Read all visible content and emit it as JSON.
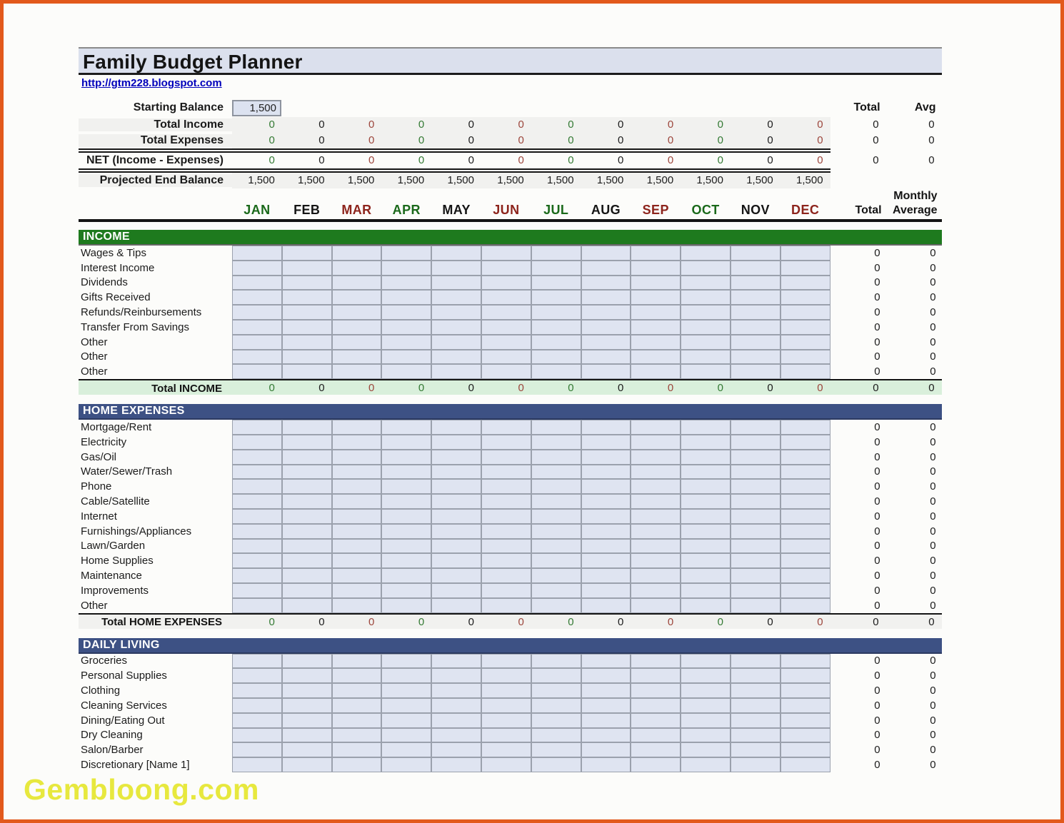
{
  "page": {
    "title": "Family Budget Planner",
    "link": "http://gtm228.blogspot.com",
    "watermark": "Gembloong.com"
  },
  "colors": {
    "frame": "#e2591c",
    "title_bg": "#dbe0ed",
    "income_header_bg": "#1e7a1e",
    "expenses_header_bg": "#3d5184",
    "cell_bg": "#dfe4f1",
    "total_income_row_bg": "#d9efdb",
    "total_expenses_row_bg": "#f1f1ef",
    "value_green": "#347a34",
    "value_red": "#9c463c",
    "value_black": "#1c1c1c"
  },
  "months": [
    {
      "label": "JAN",
      "color": "green"
    },
    {
      "label": "FEB",
      "color": "black"
    },
    {
      "label": "MAR",
      "color": "red"
    },
    {
      "label": "APR",
      "color": "green"
    },
    {
      "label": "MAY",
      "color": "black"
    },
    {
      "label": "JUN",
      "color": "red"
    },
    {
      "label": "JUL",
      "color": "green"
    },
    {
      "label": "AUG",
      "color": "black"
    },
    {
      "label": "SEP",
      "color": "red"
    },
    {
      "label": "OCT",
      "color": "green"
    },
    {
      "label": "NOV",
      "color": "black"
    },
    {
      "label": "DEC",
      "color": "red"
    }
  ],
  "summary": {
    "starting_balance_label": "Starting Balance",
    "starting_balance_value": "1,500",
    "total_header": "Total",
    "avg_header": "Avg",
    "monthly_label": "Monthly",
    "total_label": "Total",
    "average_label": "Average",
    "rows": [
      {
        "label": "Total Income",
        "values": [
          "0",
          "0",
          "0",
          "0",
          "0",
          "0",
          "0",
          "0",
          "0",
          "0",
          "0",
          "0"
        ],
        "total": "0",
        "avg": "0",
        "shaded": true,
        "black_values": false
      },
      {
        "label": "Total Expenses",
        "values": [
          "0",
          "0",
          "0",
          "0",
          "0",
          "0",
          "0",
          "0",
          "0",
          "0",
          "0",
          "0"
        ],
        "total": "0",
        "avg": "0",
        "shaded": true,
        "black_values": false
      },
      {
        "label": "NET (Income - Expenses)",
        "values": [
          "0",
          "0",
          "0",
          "0",
          "0",
          "0",
          "0",
          "0",
          "0",
          "0",
          "0",
          "0"
        ],
        "total": "0",
        "avg": "0",
        "shaded": false,
        "black_values": false
      },
      {
        "label": "Projected End Balance",
        "values": [
          "1,500",
          "1,500",
          "1,500",
          "1,500",
          "1,500",
          "1,500",
          "1,500",
          "1,500",
          "1,500",
          "1,500",
          "1,500",
          "1,500"
        ],
        "total": "",
        "avg": "",
        "shaded": true,
        "black_values": true
      }
    ]
  },
  "sections": [
    {
      "title": "INCOME",
      "style": "income",
      "rows": [
        {
          "label": "Wages & Tips",
          "total": "0",
          "avg": "0"
        },
        {
          "label": "Interest Income",
          "total": "0",
          "avg": "0"
        },
        {
          "label": "Dividends",
          "total": "0",
          "avg": "0"
        },
        {
          "label": "Gifts Received",
          "total": "0",
          "avg": "0"
        },
        {
          "label": "Refunds/Reinbursements",
          "total": "0",
          "avg": "0"
        },
        {
          "label": "Transfer From Savings",
          "total": "0",
          "avg": "0"
        },
        {
          "label": "Other",
          "total": "0",
          "avg": "0"
        },
        {
          "label": "Other",
          "total": "0",
          "avg": "0"
        },
        {
          "label": "Other",
          "total": "0",
          "avg": "0"
        }
      ],
      "total_row": {
        "label": "Total INCOME",
        "values": [
          "0",
          "0",
          "0",
          "0",
          "0",
          "0",
          "0",
          "0",
          "0",
          "0",
          "0",
          "0"
        ],
        "total": "0",
        "avg": "0",
        "style": "green"
      }
    },
    {
      "title": "HOME EXPENSES",
      "style": "expenses",
      "rows": [
        {
          "label": "Mortgage/Rent",
          "total": "0",
          "avg": "0"
        },
        {
          "label": "Electricity",
          "total": "0",
          "avg": "0"
        },
        {
          "label": "Gas/Oil",
          "total": "0",
          "avg": "0"
        },
        {
          "label": "Water/Sewer/Trash",
          "total": "0",
          "avg": "0"
        },
        {
          "label": "Phone",
          "total": "0",
          "avg": "0"
        },
        {
          "label": "Cable/Satellite",
          "total": "0",
          "avg": "0"
        },
        {
          "label": "Internet",
          "total": "0",
          "avg": "0"
        },
        {
          "label": "Furnishings/Appliances",
          "total": "0",
          "avg": "0"
        },
        {
          "label": "Lawn/Garden",
          "total": "0",
          "avg": "0"
        },
        {
          "label": "Home Supplies",
          "total": "0",
          "avg": "0"
        },
        {
          "label": "Maintenance",
          "total": "0",
          "avg": "0"
        },
        {
          "label": "Improvements",
          "total": "0",
          "avg": "0"
        },
        {
          "label": "Other",
          "total": "0",
          "avg": "0"
        }
      ],
      "total_row": {
        "label": "Total HOME EXPENSES",
        "values": [
          "0",
          "0",
          "0",
          "0",
          "0",
          "0",
          "0",
          "0",
          "0",
          "0",
          "0",
          "0"
        ],
        "total": "0",
        "avg": "0",
        "style": "gray"
      }
    },
    {
      "title": "DAILY LIVING",
      "style": "expenses",
      "rows": [
        {
          "label": "Groceries",
          "total": "0",
          "avg": "0"
        },
        {
          "label": "Personal Supplies",
          "total": "0",
          "avg": "0"
        },
        {
          "label": "Clothing",
          "total": "0",
          "avg": "0"
        },
        {
          "label": "Cleaning Services",
          "total": "0",
          "avg": "0"
        },
        {
          "label": "Dining/Eating Out",
          "total": "0",
          "avg": "0"
        },
        {
          "label": "Dry Cleaning",
          "total": "0",
          "avg": "0"
        },
        {
          "label": "Salon/Barber",
          "total": "0",
          "avg": "0"
        },
        {
          "label": "Discretionary [Name 1]",
          "total": "0",
          "avg": "0"
        }
      ],
      "total_row": null
    }
  ]
}
